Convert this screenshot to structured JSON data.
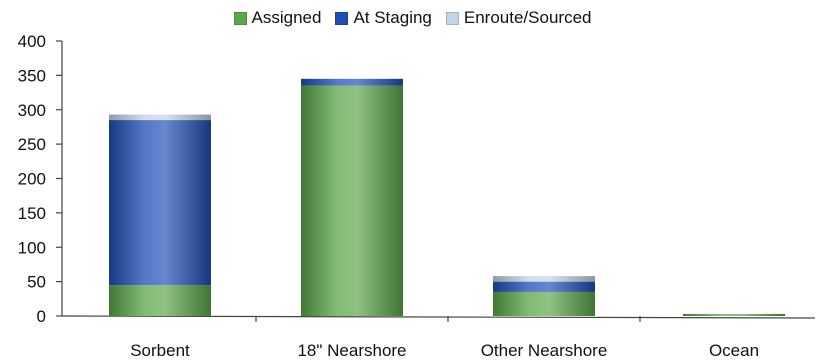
{
  "chart_data": {
    "type": "bar",
    "stacked": true,
    "categories": [
      "Sorbent",
      "18\" Nearshore",
      "Other Nearshore",
      "Ocean"
    ],
    "series": [
      {
        "name": "Assigned",
        "color": "#5aa64a",
        "values": [
          45,
          335,
          35,
          3
        ]
      },
      {
        "name": "At Staging",
        "color": "#1f4fb5",
        "values": [
          240,
          10,
          15,
          0
        ]
      },
      {
        "name": "Enroute/Sourced",
        "color": "#c2d4e8",
        "values": [
          8,
          0,
          8,
          0
        ]
      }
    ],
    "yticks": [
      "0",
      "50",
      "100",
      "150",
      "200",
      "250",
      "300",
      "350",
      "400"
    ],
    "ylim": [
      0,
      400
    ],
    "legend_position": "top-center",
    "grid": false
  }
}
